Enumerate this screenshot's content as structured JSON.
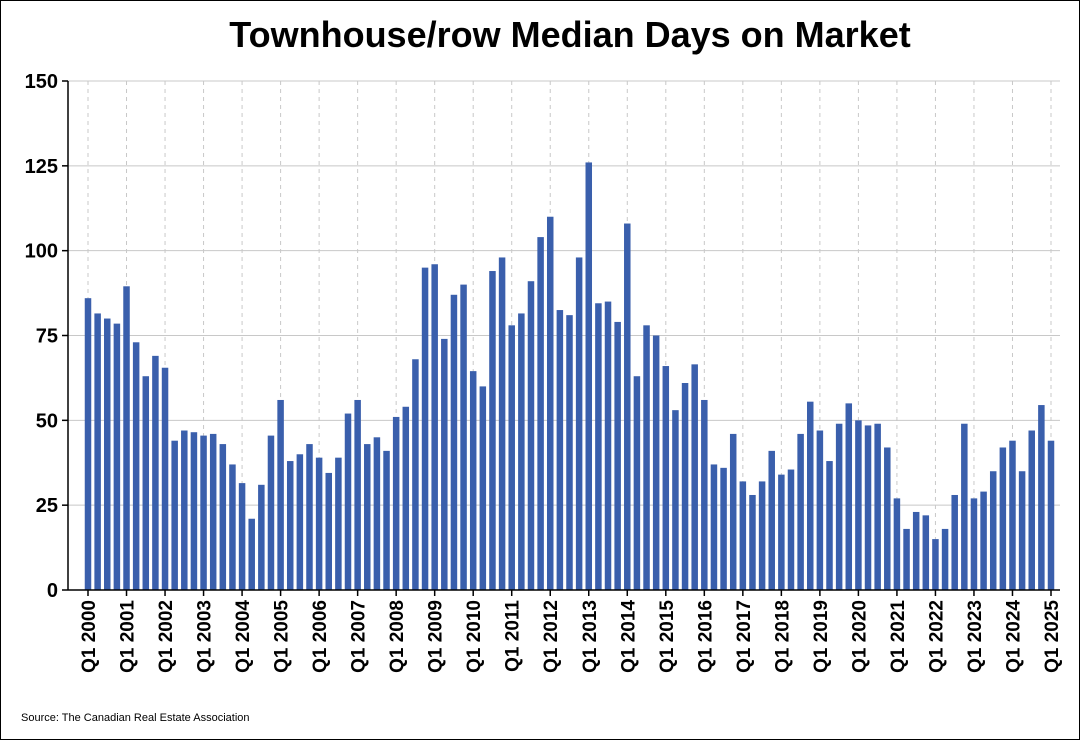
{
  "chart_data": {
    "type": "bar",
    "title": "Townhouse/row Median Days on Market",
    "source": "Source: The Canadian Real Estate Association",
    "xlabel": "",
    "ylabel": "",
    "ylim": [
      0,
      150
    ],
    "yticks": [
      0,
      25,
      50,
      75,
      100,
      125,
      150
    ],
    "grid": true,
    "bar_color": "#3a5fac",
    "categories": [
      "Q1 2000",
      "Q2 2000",
      "Q3 2000",
      "Q4 2000",
      "Q1 2001",
      "Q2 2001",
      "Q3 2001",
      "Q4 2001",
      "Q1 2002",
      "Q2 2002",
      "Q3 2002",
      "Q4 2002",
      "Q1 2003",
      "Q2 2003",
      "Q3 2003",
      "Q4 2003",
      "Q1 2004",
      "Q2 2004",
      "Q3 2004",
      "Q4 2004",
      "Q1 2005",
      "Q2 2005",
      "Q3 2005",
      "Q4 2005",
      "Q1 2006",
      "Q2 2006",
      "Q3 2006",
      "Q4 2006",
      "Q1 2007",
      "Q2 2007",
      "Q3 2007",
      "Q4 2007",
      "Q1 2008",
      "Q2 2008",
      "Q3 2008",
      "Q4 2008",
      "Q1 2009",
      "Q2 2009",
      "Q3 2009",
      "Q4 2009",
      "Q1 2010",
      "Q2 2010",
      "Q3 2010",
      "Q4 2010",
      "Q1 2011",
      "Q2 2011",
      "Q3 2011",
      "Q4 2011",
      "Q1 2012",
      "Q2 2012",
      "Q3 2012",
      "Q4 2012",
      "Q1 2013",
      "Q2 2013",
      "Q3 2013",
      "Q4 2013",
      "Q1 2014",
      "Q2 2014",
      "Q3 2014",
      "Q4 2014",
      "Q1 2015",
      "Q2 2015",
      "Q3 2015",
      "Q4 2015",
      "Q1 2016",
      "Q2 2016",
      "Q3 2016",
      "Q4 2016",
      "Q1 2017",
      "Q2 2017",
      "Q3 2017",
      "Q4 2017",
      "Q1 2018",
      "Q2 2018",
      "Q3 2018",
      "Q4 2018",
      "Q1 2019",
      "Q2 2019",
      "Q3 2019",
      "Q4 2019",
      "Q1 2020",
      "Q2 2020",
      "Q3 2020",
      "Q4 2020",
      "Q1 2021",
      "Q2 2021",
      "Q3 2021",
      "Q4 2021",
      "Q1 2022",
      "Q2 2022",
      "Q3 2022",
      "Q4 2022",
      "Q1 2023",
      "Q2 2023",
      "Q3 2023",
      "Q4 2023",
      "Q1 2024",
      "Q2 2024",
      "Q3 2024",
      "Q4 2024",
      "Q1 2025"
    ],
    "tick_labels": [
      "Q1 2000",
      "Q1 2001",
      "Q1 2002",
      "Q1 2003",
      "Q1 2004",
      "Q1 2005",
      "Q1 2006",
      "Q1 2007",
      "Q1 2008",
      "Q1 2009",
      "Q1 2010",
      "Q1 2011",
      "Q1 2012",
      "Q1 2013",
      "Q1 2014",
      "Q1 2015",
      "Q1 2016",
      "Q1 2017",
      "Q1 2018",
      "Q1 2019",
      "Q1 2020",
      "Q1 2021",
      "Q1 2022",
      "Q1 2023",
      "Q1 2024",
      "Q1 2025"
    ],
    "values": [
      86,
      81.5,
      80,
      78.5,
      89.5,
      73,
      63,
      69,
      65.5,
      44,
      47,
      46.5,
      45.5,
      46,
      43,
      37,
      31.5,
      21,
      31,
      45.5,
      56,
      38,
      40,
      43,
      39,
      34.5,
      39,
      52,
      56,
      43,
      45,
      41,
      51,
      54,
      68,
      95,
      96,
      74,
      87,
      90,
      64.5,
      60,
      94,
      98,
      78,
      81.5,
      91,
      104,
      110,
      82.5,
      81,
      98,
      126,
      84.5,
      85,
      79,
      108,
      63,
      78,
      75,
      66,
      53,
      61,
      66.5,
      56,
      37,
      36,
      46,
      32,
      28,
      32,
      41,
      34,
      35.5,
      46,
      55.5,
      47,
      38,
      49,
      55,
      50,
      48.5,
      49,
      42,
      27,
      18,
      23,
      22,
      15,
      18,
      28,
      49,
      27,
      29,
      35,
      42,
      44,
      35,
      47,
      54.5,
      44
    ]
  }
}
